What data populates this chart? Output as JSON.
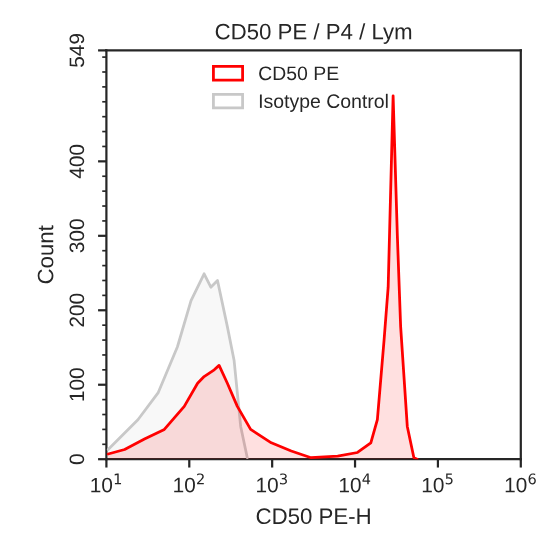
{
  "chart_data": {
    "type": "area",
    "title": "CD50 PE / P4 / Lym",
    "xlabel": "CD50 PE-H",
    "ylabel": "Count",
    "log": "x",
    "grid": false,
    "legend": "top",
    "xlim": [
      10,
      1000000
    ],
    "xticks": [
      {
        "value": 10,
        "label": "10$^{1}$"
      },
      {
        "value": 100,
        "label": "10$^{2}$"
      },
      {
        "value": 1000,
        "label": "10$^{3}$"
      },
      {
        "value": 10000,
        "label": "10$^{4}$"
      },
      {
        "value": 100000,
        "label": "10$^{5}$"
      },
      {
        "value": 1000000,
        "label": "10$^{6}$"
      }
    ],
    "ylim": [
      0,
      549
    ],
    "yticks": [
      0,
      100,
      200,
      300,
      400,
      549
    ],
    "series": [
      {
        "name": "CD50 PE",
        "color": "#ff0000",
        "x": [
          10.5,
          16.6,
          28.8,
          50,
          87,
          126,
          151,
          200,
          229,
          288,
          380,
          550,
          977,
          1700,
          2950,
          6170,
          10700,
          15500,
          18600,
          22400,
          25100,
          28800,
          32400,
          35500,
          42700,
          51300,
          56200
        ],
        "values": [
          7,
          13,
          27,
          40,
          71,
          102,
          111,
          120,
          126,
          102,
          71,
          40,
          22,
          11,
          2,
          4,
          9,
          22,
          53,
          160,
          231,
          488,
          300,
          178,
          44,
          2,
          0
        ]
      },
      {
        "name": "Isotype Control",
        "color": "#c8c8c8",
        "x": [
          10.5,
          24,
          42,
          72,
          105,
          151,
          182,
          219,
          288,
          347,
          417,
          501
        ],
        "values": [
          13,
          53,
          89,
          151,
          213,
          249,
          231,
          240,
          178,
          133,
          44,
          2
        ]
      }
    ]
  }
}
